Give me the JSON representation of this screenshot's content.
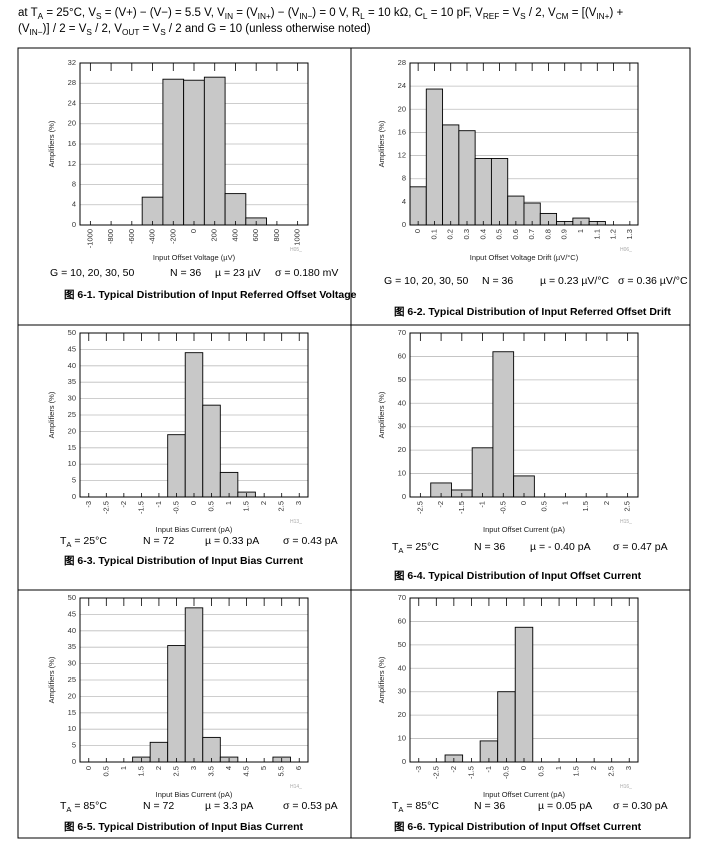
{
  "header": {
    "lines": [
      [
        "at T",
        "A",
        " = 25°C, V",
        "S",
        " = (V+) − (V−) = 5.5 V, V",
        "IN",
        " = (V",
        "IN+",
        ") − (V",
        "IN−",
        ") = 0 V, R",
        "L",
        " = 10 kΩ, C",
        "L",
        " = 10 pF, V",
        "REF",
        " = V",
        "S",
        " / 2, V",
        "CM",
        " = [(V",
        "IN+",
        ") +"
      ],
      [
        "(V",
        "IN−",
        ")] / 2 = V",
        "S",
        " / 2, V",
        "OUT",
        " = V",
        "S",
        " / 2 and G = 10 (unless otherwise noted)"
      ]
    ]
  },
  "chart_data": [
    {
      "type": "histogram",
      "ylabel": "Amplifiers (%)",
      "xlabel": "Input Offset Voltage (µV)",
      "note": "H05_",
      "bins": [
        -1100,
        -900,
        -700,
        -500,
        -300,
        -100,
        100,
        300,
        500,
        700,
        900,
        1100
      ],
      "counts": [
        0,
        0,
        0,
        5.5,
        28.8,
        28.6,
        29.2,
        6.2,
        1.4,
        0,
        0
      ],
      "xlim": [
        -1100,
        1100
      ],
      "xticks": [
        -1000,
        -800,
        -600,
        -400,
        -200,
        0,
        200,
        400,
        600,
        800,
        1000
      ],
      "ylim": [
        0,
        32
      ],
      "yticks": [
        0,
        4,
        8,
        12,
        16,
        20,
        24,
        28,
        32
      ],
      "grid": true,
      "color": "#c8c8c8",
      "stats": {
        "condition": [
          "G = 10, 20, 30, 50"
        ],
        "n": "N = 36",
        "mu": "µ = 23 µV",
        "sigma": "σ = 0.180 mV"
      },
      "caption": "图 6-1. Typical Distribution of Input Referred Offset Voltage"
    },
    {
      "type": "histogram",
      "ylabel": "Amplifiers (%)",
      "xlabel": "Input Offset Voltage Drift (µV/°C)",
      "note": "H06_",
      "bins": [
        -0.05,
        0.05,
        0.15,
        0.25,
        0.35,
        0.45,
        0.55,
        0.65,
        0.75,
        0.85,
        0.95,
        1.05,
        1.15,
        1.25,
        1.35
      ],
      "counts": [
        6.6,
        23.5,
        17.3,
        16.3,
        11.5,
        11.5,
        5,
        3.8,
        2,
        0.6,
        1.2,
        0.6,
        0,
        0
      ],
      "xlim": [
        -0.05,
        1.35
      ],
      "xticks": [
        0,
        0.1,
        0.2,
        0.3,
        0.4,
        0.5,
        0.6,
        0.7,
        0.8,
        0.9,
        1,
        1.1,
        1.2,
        1.3
      ],
      "ylim": [
        0,
        28
      ],
      "yticks": [
        0,
        4,
        8,
        12,
        16,
        20,
        24,
        28
      ],
      "grid": true,
      "color": "#c8c8c8",
      "stats": {
        "condition": [
          "G = 10, 20, 30, 50"
        ],
        "n": "N = 36",
        "mu": "µ = 0.23 µV/°C",
        "sigma": "σ = 0.36 µV/°C"
      },
      "caption": "图 6-2. Typical Distribution of Input Referred Offset Drift"
    },
    {
      "type": "histogram",
      "ylabel": "Amplifiers (%)",
      "xlabel": "Input Bias Current (pA)",
      "note": "H13_",
      "bins": [
        -3.25,
        -2.75,
        -2.25,
        -1.75,
        -1.25,
        -0.75,
        -0.25,
        0.25,
        0.75,
        1.25,
        1.75,
        2.25,
        2.75,
        3.25
      ],
      "counts": [
        0,
        0,
        0,
        0,
        0,
        19,
        44,
        28,
        7.5,
        1.5,
        0,
        0,
        0
      ],
      "xlim": [
        -3.25,
        3.25
      ],
      "xticks": [
        -3,
        -2.5,
        -2,
        -1.5,
        -1,
        -0.5,
        0,
        0.5,
        1,
        1.5,
        2,
        2.5,
        3
      ],
      "ylim": [
        0,
        50
      ],
      "yticks": [
        0,
        5,
        10,
        15,
        20,
        25,
        30,
        35,
        40,
        45,
        50
      ],
      "grid": true,
      "color": "#c8c8c8",
      "stats": {
        "condition": [
          "T",
          "A",
          " = 25°C"
        ],
        "n": "N = 72",
        "mu": "µ = 0.33 pA",
        "sigma": "σ = 0.43 pA"
      },
      "caption": "图 6-3. Typical Distribution of Input Bias Current"
    },
    {
      "type": "histogram",
      "ylabel": "Amplifiers (%)",
      "xlabel": "Input Offset Current (pA)",
      "note": "H15_",
      "bins": [
        -2.75,
        -2.25,
        -1.75,
        -1.25,
        -0.75,
        -0.25,
        0.25,
        0.75,
        1.25,
        1.75,
        2.25,
        2.75
      ],
      "counts": [
        0,
        6,
        3,
        21,
        62,
        9,
        0,
        0,
        0,
        0,
        0
      ],
      "xlim": [
        -2.75,
        2.75
      ],
      "xticks": [
        -2.5,
        -2,
        -1.5,
        -1,
        -0.5,
        0,
        0.5,
        1,
        1.5,
        2,
        2.5
      ],
      "ylim": [
        0,
        70
      ],
      "yticks": [
        0,
        10,
        20,
        30,
        40,
        50,
        60,
        70
      ],
      "grid": true,
      "color": "#c8c8c8",
      "stats": {
        "condition": [
          "T",
          "A",
          " = 25°C"
        ],
        "n": "N = 36",
        "mu": "µ = - 0.40 pA",
        "sigma": "σ = 0.47 pA"
      },
      "caption": "图 6-4. Typical Distribution of Input Offset Current"
    },
    {
      "type": "histogram",
      "ylabel": "Amplifiers (%)",
      "xlabel": "Input Bias Current (pA)",
      "note": "H14_",
      "bins": [
        -0.25,
        0.25,
        0.75,
        1.25,
        1.75,
        2.25,
        2.75,
        3.25,
        3.75,
        4.25,
        4.75,
        5.25,
        5.75,
        6.25
      ],
      "counts": [
        0,
        0,
        0,
        1.5,
        6,
        35.5,
        47,
        7.5,
        1.5,
        0,
        0,
        1.5,
        0
      ],
      "xlim": [
        -0.25,
        6.25
      ],
      "xticks": [
        0,
        0.5,
        1,
        1.5,
        2,
        2.5,
        3,
        3.5,
        4,
        4.5,
        5,
        5.5,
        6
      ],
      "ylim": [
        0,
        50
      ],
      "yticks": [
        0,
        5,
        10,
        15,
        20,
        25,
        30,
        35,
        40,
        45,
        50
      ],
      "grid": true,
      "color": "#c8c8c8",
      "stats": {
        "condition": [
          "T",
          "A",
          " = 85°C"
        ],
        "n": "N = 72",
        "mu": "µ = 3.3 pA",
        "sigma": "σ = 0.53 pA"
      },
      "caption": "图 6-5. Typical Distribution of Input Bias Current"
    },
    {
      "type": "histogram",
      "ylabel": "Amplifiers (%)",
      "xlabel": "Input Offset Current (pA)",
      "note": "H16_",
      "bins": [
        -3.25,
        -2.75,
        -2.25,
        -1.75,
        -1.25,
        -0.75,
        -0.25,
        0.25,
        0.75,
        1.25,
        1.75,
        2.25,
        2.75,
        3.25
      ],
      "counts": [
        0,
        0,
        3,
        0,
        9,
        30,
        57.5,
        0,
        0,
        0,
        0,
        0,
        0
      ],
      "xlim": [
        -3.25,
        3.25
      ],
      "xticks": [
        -3,
        -2.5,
        -2,
        -1.5,
        -1,
        -0.5,
        0,
        0.5,
        1,
        1.5,
        2,
        2.5,
        3
      ],
      "ylim": [
        0,
        70
      ],
      "yticks": [
        0,
        10,
        20,
        30,
        40,
        50,
        60,
        70
      ],
      "grid": true,
      "color": "#c8c8c8",
      "stats": {
        "condition": [
          "T",
          "A",
          " = 85°C"
        ],
        "n": "N = 36",
        "mu": "µ = 0.05 pA",
        "sigma": "σ = 0.30 pA"
      },
      "caption": "图 6-6. Typical Distribution of Input Offset Current"
    }
  ]
}
